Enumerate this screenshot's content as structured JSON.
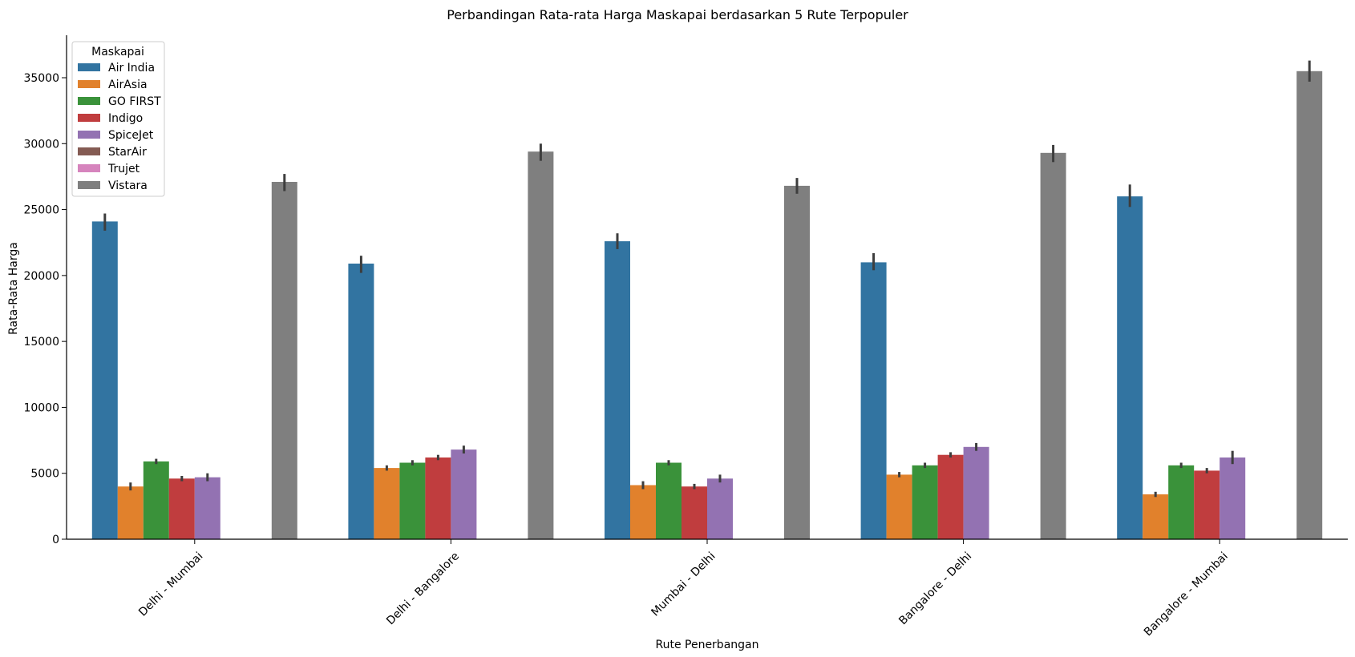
{
  "chart_data": {
    "type": "bar",
    "title": "Perbandingan Rata-rata Harga Maskapai berdasarkan 5 Rute Terpopuler",
    "xlabel": "Rute Penerbangan",
    "ylabel": "Rata-Rata Harga",
    "ylim": [
      0,
      38000
    ],
    "yticks": [
      0,
      5000,
      10000,
      15000,
      20000,
      25000,
      30000,
      35000
    ],
    "grid": false,
    "legend": {
      "title": "Maskapai",
      "placement": "top-left"
    },
    "categories": [
      "Delhi - Mumbai",
      "Delhi - Bangalore",
      "Mumbai - Delhi",
      "Bangalore - Delhi",
      "Bangalore - Mumbai"
    ],
    "series": [
      {
        "name": "Air India",
        "color": "#3274a1",
        "values": [
          24100,
          20900,
          22600,
          21000,
          26000
        ],
        "err": [
          [
            23400,
            24700
          ],
          [
            20200,
            21500
          ],
          [
            22000,
            23200
          ],
          [
            20400,
            21700
          ],
          [
            25200,
            26900
          ]
        ]
      },
      {
        "name": "AirAsia",
        "color": "#e1812c",
        "values": [
          4000,
          5400,
          4100,
          4900,
          3400
        ],
        "err": [
          [
            3700,
            4300
          ],
          [
            5200,
            5600
          ],
          [
            3800,
            4400
          ],
          [
            4700,
            5100
          ],
          [
            3200,
            3600
          ]
        ]
      },
      {
        "name": "GO FIRST",
        "color": "#3a923a",
        "values": [
          5900,
          5800,
          5800,
          5600,
          5600
        ],
        "err": [
          [
            5700,
            6100
          ],
          [
            5600,
            6000
          ],
          [
            5600,
            6000
          ],
          [
            5400,
            5800
          ],
          [
            5400,
            5800
          ]
        ]
      },
      {
        "name": "Indigo",
        "color": "#c03d3e",
        "values": [
          4600,
          6200,
          4000,
          6400,
          5200
        ],
        "err": [
          [
            4400,
            4800
          ],
          [
            6000,
            6400
          ],
          [
            3800,
            4200
          ],
          [
            6200,
            6600
          ],
          [
            5000,
            5400
          ]
        ]
      },
      {
        "name": "SpiceJet",
        "color": "#9372b2",
        "values": [
          4700,
          6800,
          4600,
          7000,
          6200
        ],
        "err": [
          [
            4400,
            5000
          ],
          [
            6500,
            7100
          ],
          [
            4300,
            4900
          ],
          [
            6700,
            7300
          ],
          [
            5700,
            6700
          ]
        ]
      },
      {
        "name": "StarAir",
        "color": "#845b53",
        "values": [
          null,
          null,
          null,
          null,
          null
        ],
        "err": [
          null,
          null,
          null,
          null,
          null
        ]
      },
      {
        "name": "Trujet",
        "color": "#d684bd",
        "values": [
          null,
          null,
          null,
          null,
          null
        ],
        "err": [
          null,
          null,
          null,
          null,
          null
        ]
      },
      {
        "name": "Vistara",
        "color": "#7f7f7f",
        "values": [
          27100,
          29400,
          26800,
          29300,
          35500
        ],
        "err": [
          [
            26400,
            27700
          ],
          [
            28700,
            30000
          ],
          [
            26200,
            27400
          ],
          [
            28600,
            29900
          ],
          [
            34700,
            36300
          ]
        ]
      }
    ]
  }
}
